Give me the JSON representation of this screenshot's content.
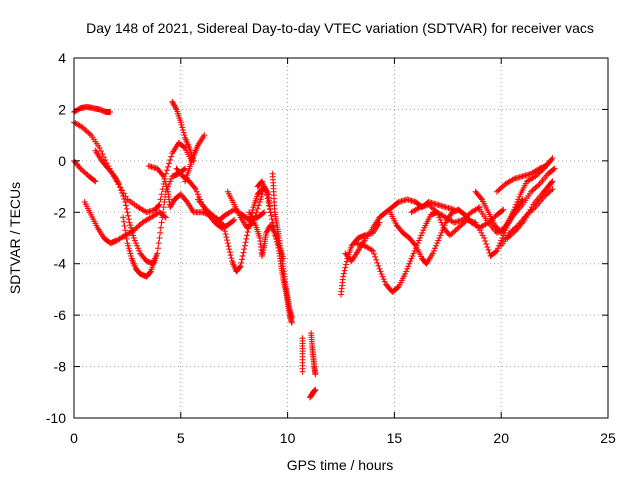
{
  "chart_data": {
    "type": "scatter",
    "title": "Day 148 of 2021, Sidereal Day-to-day VTEC variation (SDTVAR) for receiver vacs",
    "xlabel": "GPS time / hours",
    "ylabel": "SDTVAR / TECUs",
    "xlim": [
      0,
      25
    ],
    "ylim": [
      -10,
      4
    ],
    "xticks": [
      0,
      5,
      10,
      15,
      20,
      25
    ],
    "yticks": [
      -10,
      -8,
      -6,
      -4,
      -2,
      0,
      2,
      4
    ],
    "grid": true,
    "legend": "none",
    "marker": "+",
    "color": "#ff0000",
    "tracks": [
      [
        [
          0.0,
          1.9
        ],
        [
          0.3,
          2.05
        ],
        [
          0.6,
          2.1
        ],
        [
          0.9,
          2.05
        ],
        [
          1.2,
          2.0
        ],
        [
          1.5,
          1.9
        ],
        [
          1.7,
          1.9
        ]
      ],
      [
        [
          0.0,
          1.5
        ],
        [
          0.4,
          1.3
        ],
        [
          0.8,
          1.0
        ],
        [
          1.2,
          0.5
        ],
        [
          1.6,
          -0.2
        ],
        [
          2.0,
          -0.8
        ],
        [
          2.5,
          -1.5
        ],
        [
          3.0,
          -1.8
        ],
        [
          3.4,
          -2.0
        ],
        [
          3.8,
          -1.9
        ],
        [
          4.0,
          -1.7
        ],
        [
          4.3,
          -0.5
        ],
        [
          4.6,
          0.3
        ],
        [
          4.9,
          0.7
        ],
        [
          5.2,
          0.5
        ],
        [
          5.5,
          0.0
        ]
      ],
      [
        [
          0.0,
          0.0
        ],
        [
          0.3,
          -0.3
        ],
        [
          0.7,
          -0.6
        ],
        [
          1.0,
          -0.8
        ]
      ],
      [
        [
          0.5,
          -1.6
        ],
        [
          0.8,
          -2.1
        ],
        [
          1.1,
          -2.6
        ],
        [
          1.4,
          -3.0
        ],
        [
          1.7,
          -3.2
        ],
        [
          2.0,
          -3.1
        ],
        [
          2.4,
          -2.9
        ],
        [
          2.8,
          -2.7
        ],
        [
          3.2,
          -2.4
        ],
        [
          3.6,
          -2.2
        ],
        [
          4.0,
          -2.0
        ],
        [
          4.3,
          -2.2
        ]
      ],
      [
        [
          1.0,
          0.4
        ],
        [
          1.3,
          0.0
        ],
        [
          1.6,
          -0.3
        ],
        [
          1.9,
          -0.6
        ],
        [
          2.1,
          -0.9
        ],
        [
          2.4,
          -1.6
        ],
        [
          2.6,
          -2.4
        ],
        [
          2.8,
          -3.0
        ],
        [
          3.1,
          -3.6
        ],
        [
          3.4,
          -3.9
        ],
        [
          3.7,
          -4.0
        ],
        [
          3.9,
          -3.6
        ],
        [
          4.1,
          -2.4
        ],
        [
          4.3,
          -1.2
        ],
        [
          4.6,
          -0.6
        ],
        [
          4.9,
          -0.5
        ],
        [
          5.2,
          -0.3
        ]
      ],
      [
        [
          2.3,
          -2.2
        ],
        [
          2.5,
          -3.2
        ],
        [
          2.7,
          -3.8
        ],
        [
          2.9,
          -4.2
        ],
        [
          3.1,
          -4.4
        ],
        [
          3.4,
          -4.5
        ],
        [
          3.6,
          -4.3
        ],
        [
          3.8,
          -3.8
        ]
      ],
      [
        [
          3.5,
          -0.2
        ],
        [
          3.9,
          -0.3
        ],
        [
          4.2,
          -0.6
        ],
        [
          4.4,
          -1.2
        ],
        [
          4.5,
          -1.8
        ],
        [
          4.7,
          -1.5
        ],
        [
          5.0,
          -1.3
        ],
        [
          5.3,
          -1.6
        ],
        [
          5.6,
          -2.0
        ],
        [
          6.0,
          -2.0
        ],
        [
          6.4,
          -2.1
        ],
        [
          6.8,
          -2.3
        ],
        [
          7.1,
          -2.1
        ],
        [
          7.5,
          -1.9
        ],
        [
          7.9,
          -2.1
        ],
        [
          8.2,
          -2.3
        ],
        [
          8.6,
          -2.2
        ],
        [
          8.9,
          -2.0
        ]
      ],
      [
        [
          4.6,
          2.3
        ],
        [
          4.8,
          2.0
        ],
        [
          5.0,
          1.5
        ],
        [
          5.2,
          0.9
        ],
        [
          5.4,
          0.5
        ],
        [
          5.6,
          0.0
        ]
      ],
      [
        [
          5.2,
          -0.8
        ],
        [
          5.4,
          -0.3
        ],
        [
          5.6,
          0.2
        ],
        [
          5.8,
          0.6
        ],
        [
          6.1,
          1.0
        ]
      ],
      [
        [
          4.8,
          -0.3
        ],
        [
          5.1,
          -0.6
        ],
        [
          5.4,
          -0.8
        ],
        [
          5.7,
          -1.1
        ],
        [
          6.0,
          -1.7
        ],
        [
          6.3,
          -2.1
        ],
        [
          6.6,
          -2.4
        ],
        [
          6.9,
          -2.6
        ],
        [
          7.2,
          -2.5
        ],
        [
          7.5,
          -2.3
        ]
      ],
      [
        [
          5.8,
          -1.5
        ],
        [
          6.2,
          -1.9
        ],
        [
          6.6,
          -2.2
        ],
        [
          7.0,
          -2.5
        ],
        [
          7.2,
          -3.2
        ],
        [
          7.4,
          -3.9
        ],
        [
          7.6,
          -4.3
        ],
        [
          7.8,
          -4.1
        ],
        [
          8.0,
          -3.3
        ],
        [
          8.2,
          -2.5
        ],
        [
          8.4,
          -1.8
        ],
        [
          8.6,
          -1.3
        ],
        [
          8.8,
          -1.1
        ]
      ],
      [
        [
          7.2,
          -1.2
        ],
        [
          7.5,
          -1.7
        ],
        [
          7.8,
          -2.2
        ],
        [
          8.1,
          -2.6
        ],
        [
          8.4,
          -2.4
        ],
        [
          8.7,
          -1.6
        ],
        [
          8.9,
          -1.0
        ],
        [
          9.1,
          -1.3
        ],
        [
          9.2,
          -2.0
        ]
      ],
      [
        [
          8.6,
          -1.0
        ],
        [
          8.8,
          -0.8
        ],
        [
          9.0,
          -1.2
        ],
        [
          9.2,
          -2.0
        ],
        [
          9.4,
          -2.8
        ],
        [
          9.6,
          -3.5
        ],
        [
          9.7,
          -4.1
        ],
        [
          9.8,
          -4.6
        ],
        [
          9.9,
          -5.0
        ],
        [
          10.0,
          -5.5
        ],
        [
          10.1,
          -6.0
        ],
        [
          10.2,
          -6.3
        ]
      ],
      [
        [
          8.2,
          -2.0
        ],
        [
          8.5,
          -2.5
        ],
        [
          8.7,
          -3.0
        ],
        [
          8.8,
          -3.7
        ],
        [
          8.9,
          -3.3
        ],
        [
          9.0,
          -2.8
        ],
        [
          9.2,
          -2.5
        ],
        [
          9.4,
          -2.8
        ],
        [
          9.6,
          -3.3
        ],
        [
          9.8,
          -3.8
        ]
      ],
      [
        [
          9.3,
          -0.5
        ],
        [
          9.35,
          -1.2
        ],
        [
          9.4,
          -2.0
        ],
        [
          9.5,
          -2.5
        ],
        [
          9.6,
          -3.0
        ],
        [
          9.7,
          -3.6
        ],
        [
          9.8,
          -4.2
        ],
        [
          9.9,
          -4.8
        ],
        [
          10.0,
          -5.3
        ],
        [
          10.1,
          -5.8
        ],
        [
          10.2,
          -6.1
        ]
      ],
      [
        [
          10.7,
          -6.9
        ],
        [
          10.7,
          -7.5
        ],
        [
          10.7,
          -8.2
        ]
      ],
      [
        [
          11.1,
          -6.7
        ],
        [
          11.15,
          -7.2
        ],
        [
          11.2,
          -7.6
        ],
        [
          11.25,
          -8.0
        ],
        [
          11.3,
          -8.3
        ]
      ],
      [
        [
          11.05,
          -9.2
        ],
        [
          11.2,
          -9.0
        ],
        [
          11.3,
          -8.9
        ]
      ],
      [
        [
          12.5,
          -5.2
        ],
        [
          12.6,
          -4.5
        ],
        [
          12.8,
          -3.8
        ],
        [
          13.0,
          -3.3
        ],
        [
          13.3,
          -3.0
        ],
        [
          13.6,
          -2.9
        ],
        [
          14.0,
          -2.8
        ],
        [
          14.3,
          -2.4
        ]
      ],
      [
        [
          12.7,
          -3.6
        ],
        [
          13.0,
          -3.9
        ],
        [
          13.3,
          -3.5
        ],
        [
          13.6,
          -3.1
        ],
        [
          14.0,
          -2.6
        ],
        [
          14.3,
          -2.2
        ],
        [
          14.6,
          -2.0
        ],
        [
          14.9,
          -1.8
        ],
        [
          15.2,
          -1.6
        ],
        [
          15.6,
          -1.5
        ],
        [
          16.0,
          -1.6
        ],
        [
          16.3,
          -1.8
        ],
        [
          16.6,
          -1.6
        ],
        [
          17.0,
          -1.7
        ],
        [
          17.4,
          -1.8
        ],
        [
          17.8,
          -1.9
        ]
      ],
      [
        [
          13.2,
          -3.2
        ],
        [
          13.6,
          -3.3
        ],
        [
          14.0,
          -3.5
        ],
        [
          14.3,
          -4.2
        ],
        [
          14.6,
          -4.8
        ],
        [
          14.9,
          -5.1
        ],
        [
          15.2,
          -4.9
        ],
        [
          15.5,
          -4.4
        ],
        [
          15.8,
          -3.8
        ],
        [
          16.1,
          -3.2
        ],
        [
          16.4,
          -2.6
        ],
        [
          16.7,
          -2.1
        ],
        [
          17.0,
          -2.0
        ],
        [
          17.4,
          -2.2
        ],
        [
          17.8,
          -2.4
        ],
        [
          18.2,
          -2.3
        ],
        [
          18.6,
          -2.0
        ],
        [
          19.0,
          -1.8
        ]
      ],
      [
        [
          14.8,
          -2.0
        ],
        [
          15.1,
          -2.5
        ],
        [
          15.4,
          -2.8
        ],
        [
          15.7,
          -3.0
        ],
        [
          16.0,
          -3.3
        ],
        [
          16.3,
          -3.8
        ],
        [
          16.5,
          -4.0
        ],
        [
          16.8,
          -3.6
        ],
        [
          17.1,
          -3.0
        ],
        [
          17.4,
          -2.4
        ],
        [
          17.7,
          -2.0
        ],
        [
          18.0,
          -1.9
        ],
        [
          18.3,
          -2.1
        ],
        [
          18.6,
          -2.4
        ],
        [
          19.0,
          -2.6
        ],
        [
          19.4,
          -2.4
        ],
        [
          19.8,
          -2.1
        ],
        [
          20.1,
          -1.9
        ]
      ],
      [
        [
          15.8,
          -2.0
        ],
        [
          16.2,
          -1.8
        ],
        [
          16.6,
          -1.7
        ],
        [
          17.0,
          -2.0
        ],
        [
          17.3,
          -2.6
        ],
        [
          17.6,
          -2.9
        ],
        [
          18.0,
          -2.6
        ],
        [
          18.4,
          -2.3
        ],
        [
          18.8,
          -2.4
        ],
        [
          19.2,
          -3.0
        ],
        [
          19.5,
          -3.7
        ],
        [
          19.8,
          -3.5
        ],
        [
          20.1,
          -2.9
        ],
        [
          20.4,
          -2.3
        ],
        [
          20.7,
          -1.9
        ],
        [
          21.0,
          -1.5
        ]
      ],
      [
        [
          18.8,
          -1.2
        ],
        [
          19.1,
          -1.5
        ],
        [
          19.4,
          -2.0
        ],
        [
          19.7,
          -2.5
        ],
        [
          20.0,
          -2.8
        ],
        [
          20.3,
          -2.4
        ],
        [
          20.6,
          -1.9
        ],
        [
          20.9,
          -1.3
        ],
        [
          21.2,
          -0.8
        ],
        [
          21.6,
          -0.6
        ],
        [
          22.0,
          -0.3
        ],
        [
          22.3,
          0.0
        ]
      ],
      [
        [
          19.8,
          -1.2
        ],
        [
          20.2,
          -0.9
        ],
        [
          20.6,
          -0.7
        ],
        [
          21.0,
          -0.6
        ],
        [
          21.4,
          -0.5
        ],
        [
          21.8,
          -0.3
        ],
        [
          22.1,
          -0.2
        ],
        [
          22.4,
          0.1
        ]
      ],
      [
        [
          20.0,
          -3.3
        ],
        [
          20.4,
          -2.8
        ],
        [
          20.8,
          -2.5
        ],
        [
          21.2,
          -2.1
        ],
        [
          21.6,
          -1.8
        ],
        [
          22.0,
          -1.4
        ],
        [
          22.4,
          -1.1
        ]
      ],
      [
        [
          20.3,
          -3.0
        ],
        [
          20.7,
          -2.7
        ],
        [
          21.1,
          -2.3
        ],
        [
          21.5,
          -1.7
        ],
        [
          21.9,
          -1.3
        ],
        [
          22.2,
          -1.0
        ],
        [
          22.4,
          -0.8
        ]
      ],
      [
        [
          19.0,
          -1.9
        ],
        [
          19.4,
          -2.4
        ],
        [
          19.8,
          -2.8
        ],
        [
          20.2,
          -2.6
        ],
        [
          20.6,
          -2.1
        ],
        [
          21.0,
          -1.7
        ],
        [
          21.4,
          -1.2
        ],
        [
          21.8,
          -0.9
        ],
        [
          22.2,
          -0.5
        ],
        [
          22.5,
          -0.3
        ]
      ]
    ]
  }
}
